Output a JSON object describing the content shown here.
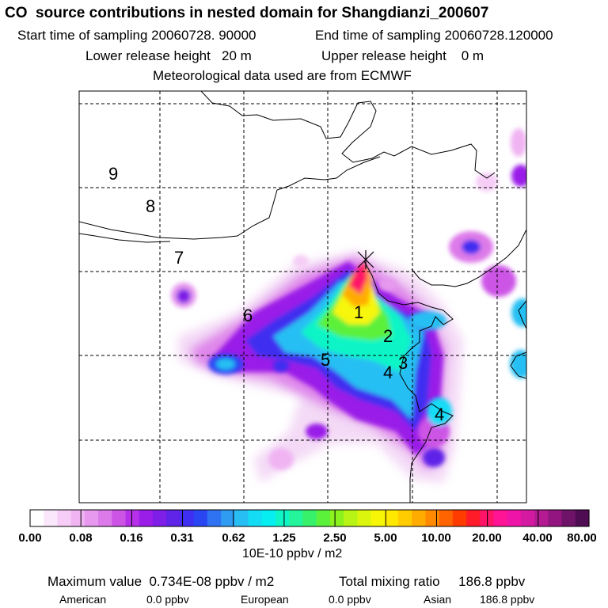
{
  "title": "CO  source contributions in nested domain for Shangdianzi_200607",
  "start_time": "Start time of sampling 20060728. 90000",
  "end_time": "End time of sampling 20060728.120000",
  "lower_height": "Lower release height   20 m",
  "upper_height": "Upper release height    0 m",
  "met_data": "Meteorological data used are from ECMWF",
  "region_numbers": [
    "1",
    "2",
    "3",
    "4",
    "5",
    "6",
    "7",
    "8",
    "9",
    "4"
  ],
  "colorbar": {
    "ticks": [
      "0.00",
      "0.08",
      "0.16",
      "0.31",
      "0.62",
      "1.25",
      "2.50",
      "5.00",
      "10.00",
      "20.00",
      "40.00",
      "80.00"
    ],
    "unit": "10E-10 ppbv / m2",
    "colors": [
      "#ffffff",
      "#fbe7fb",
      "#f6cdf6",
      "#f0b4f2",
      "#e699ee",
      "#dd7ae9",
      "#cd55e6",
      "#b530e8",
      "#9a1de8",
      "#7e1ee6",
      "#5f24e8",
      "#3f2ff0",
      "#2a46f3",
      "#2f73f2",
      "#2f9bf1",
      "#27bff3",
      "#15dcf5",
      "#06eef0",
      "#10f5c6",
      "#24f49a",
      "#38f16a",
      "#5bf03a",
      "#8bf21e",
      "#b8f415",
      "#dbf60c",
      "#f7f607",
      "#ffe800",
      "#ffcc00",
      "#ffac00",
      "#ff8a00",
      "#ff6400",
      "#ff3c00",
      "#ff1c28",
      "#ff1467",
      "#ff1495",
      "#ef14a8",
      "#d51aa2",
      "#b41a92",
      "#921580",
      "#6f1368",
      "#500c52"
    ]
  },
  "max_value": "Maximum value  0.734E-08 ppbv / m2",
  "total_mixing": "Total mixing ratio     186.8 ppbv",
  "regions": {
    "american_label": "American",
    "american_value": "0.0 ppbv",
    "european_label": "European",
    "european_value": "0.0 ppbv",
    "asian_label": "Asian",
    "asian_value": "186.8 ppbv"
  }
}
